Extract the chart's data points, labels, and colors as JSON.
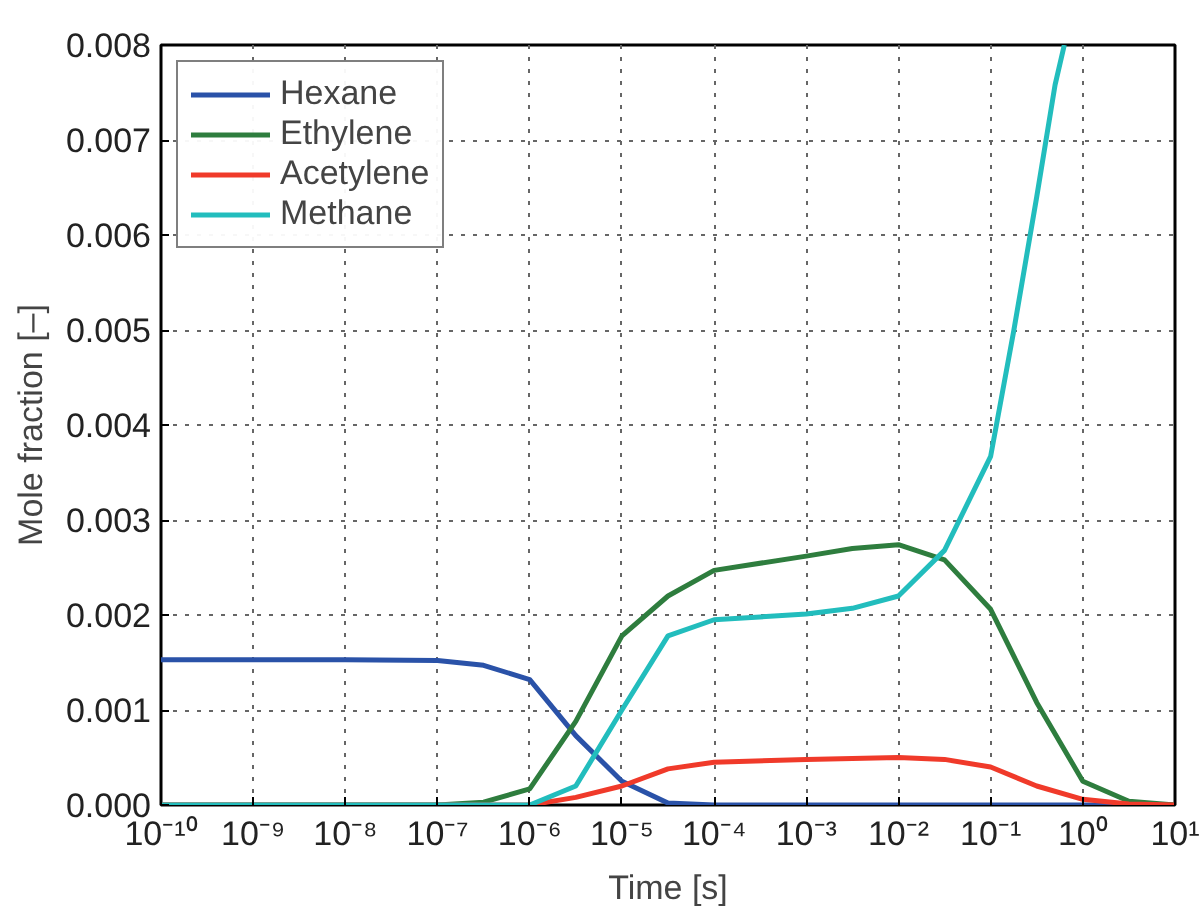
{
  "chart_data": {
    "type": "line",
    "xlabel": "Time [s]",
    "ylabel": "Mole fraction [–]",
    "log": "x",
    "grid": true,
    "legend": "top left",
    "line_style": "solid",
    "xlim": [
      1e-10,
      10
    ],
    "ylim": [
      0,
      0.008
    ],
    "xticks": [
      {
        "value": 1e-10,
        "label": "10⁻¹⁰"
      },
      {
        "value": 1e-09,
        "label": "10⁻⁹"
      },
      {
        "value": 1e-08,
        "label": "10⁻⁸"
      },
      {
        "value": 1e-07,
        "label": "10⁻⁷"
      },
      {
        "value": 1e-06,
        "label": "10⁻⁶"
      },
      {
        "value": 1e-05,
        "label": "10⁻⁵"
      },
      {
        "value": 0.0001,
        "label": "10⁻⁴"
      },
      {
        "value": 0.001,
        "label": "10⁻³"
      },
      {
        "value": 0.01,
        "label": "10⁻²"
      },
      {
        "value": 0.1,
        "label": "10⁻¹"
      },
      {
        "value": 1,
        "label": "10⁰"
      },
      {
        "value": 10,
        "label": "10¹"
      }
    ],
    "yticks": [
      {
        "value": 0,
        "label": "0.000"
      },
      {
        "value": 0.001,
        "label": "0.001"
      },
      {
        "value": 0.002,
        "label": "0.002"
      },
      {
        "value": 0.003,
        "label": "0.003"
      },
      {
        "value": 0.004,
        "label": "0.004"
      },
      {
        "value": 0.005,
        "label": "0.005"
      },
      {
        "value": 0.006,
        "label": "0.006"
      },
      {
        "value": 0.007,
        "label": "0.007"
      },
      {
        "value": 0.008,
        "label": "0.008"
      }
    ],
    "series": [
      {
        "name": "Hexane",
        "color": "#2a52a8",
        "x": [
          1e-10,
          1e-09,
          1e-08,
          1e-07,
          3.16e-07,
          1e-06,
          3.16e-06,
          1e-05,
          3.16e-05,
          0.0001,
          0.001,
          0.01,
          0.1,
          1,
          10
        ],
        "values": [
          0.00153,
          0.00153,
          0.00153,
          0.00152,
          0.00147,
          0.00132,
          0.00073,
          0.00025,
          2e-05,
          0,
          0,
          0,
          0,
          0,
          0
        ]
      },
      {
        "name": "Ethylene",
        "color": "#2e7d3e",
        "x": [
          1e-10,
          1e-08,
          1e-07,
          3.16e-07,
          1e-06,
          3.16e-06,
          1e-05,
          3.16e-05,
          0.0001,
          0.001,
          0.00316,
          0.01,
          0.0316,
          0.1,
          0.316,
          1,
          3.16,
          10
        ],
        "values": [
          0,
          0,
          0,
          3e-05,
          0.00017,
          0.00088,
          0.00178,
          0.0022,
          0.00247,
          0.00262,
          0.0027,
          0.00274,
          0.00258,
          0.00206,
          0.00108,
          0.00025,
          4e-05,
          0
        ]
      },
      {
        "name": "Acetylene",
        "color": "#f03a2a",
        "x": [
          1e-10,
          1e-07,
          1e-06,
          3.16e-06,
          1e-05,
          3.16e-05,
          0.0001,
          0.001,
          0.01,
          0.0316,
          0.1,
          0.316,
          1,
          3.16,
          10
        ],
        "values": [
          0,
          0,
          0,
          8e-05,
          0.0002,
          0.00038,
          0.00045,
          0.00048,
          0.0005,
          0.00048,
          0.0004,
          0.0002,
          6e-05,
          1e-05,
          0
        ]
      },
      {
        "name": "Methane",
        "color": "#22bdbd",
        "x": [
          1e-10,
          1e-07,
          1e-06,
          3.16e-06,
          1e-05,
          3.16e-05,
          0.0001,
          0.001,
          0.00316,
          0.01,
          0.0316,
          0.1,
          0.178,
          0.316,
          0.5,
          0.63
        ],
        "values": [
          0,
          0,
          0,
          0.0002,
          0.001,
          0.00178,
          0.00195,
          0.00201,
          0.00207,
          0.0022,
          0.00268,
          0.00367,
          0.00499,
          0.0064,
          0.00758,
          0.008
        ]
      }
    ]
  }
}
